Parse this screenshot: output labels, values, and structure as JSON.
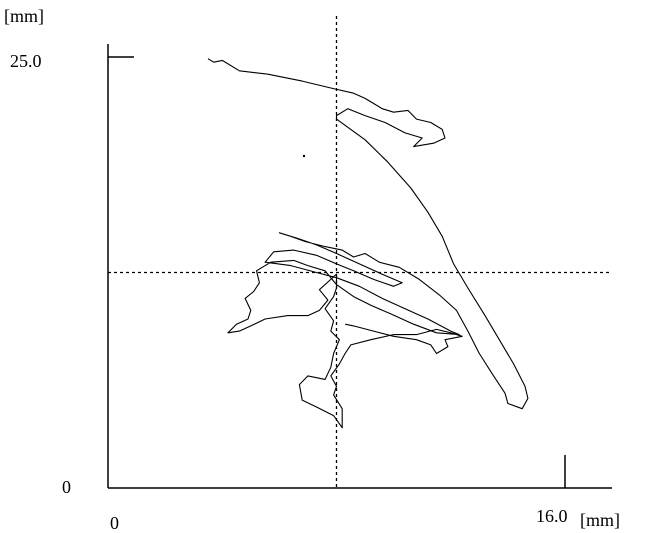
{
  "chart_data": {
    "type": "line",
    "x_unit_label": "[mm]",
    "y_unit_label": "[mm]",
    "x_tick_labels": [
      "0",
      "16.0"
    ],
    "y_tick_labels": [
      "0",
      "25.0"
    ],
    "xlim": [
      0,
      16.0
    ],
    "ylim": [
      0,
      25.0
    ],
    "grid": false,
    "crosshair": {
      "x": 8.0,
      "y": 12.5
    },
    "series": [
      {
        "stroke": "#000000",
        "points": [
          [
            3.5,
            24.9
          ],
          [
            3.7,
            24.7
          ],
          [
            4.0,
            24.8
          ],
          [
            4.6,
            24.2
          ],
          [
            5.6,
            24.0
          ],
          [
            6.8,
            23.6
          ],
          [
            7.8,
            23.2
          ],
          [
            8.6,
            22.9
          ],
          [
            9.0,
            22.6
          ],
          [
            9.6,
            22.0
          ],
          [
            10.0,
            21.8
          ],
          [
            10.5,
            21.9
          ],
          [
            10.8,
            21.4
          ],
          [
            11.3,
            21.2
          ],
          [
            11.7,
            20.8
          ],
          [
            11.8,
            20.3
          ],
          [
            11.4,
            20.0
          ],
          [
            10.7,
            19.8
          ],
          [
            11.0,
            20.3
          ],
          [
            10.4,
            20.6
          ],
          [
            9.7,
            21.2
          ],
          [
            9.0,
            21.6
          ],
          [
            8.4,
            22.0
          ],
          [
            8.0,
            21.6
          ],
          [
            8.0,
            21.4
          ],
          [
            9.0,
            20.2
          ],
          [
            9.8,
            18.9
          ],
          [
            10.6,
            17.4
          ],
          [
            11.2,
            16.0
          ],
          [
            11.7,
            14.6
          ],
          [
            12.1,
            13.0
          ],
          [
            12.6,
            11.6
          ],
          [
            13.2,
            10.0
          ],
          [
            13.7,
            8.6
          ],
          [
            14.2,
            7.2
          ],
          [
            14.6,
            5.9
          ],
          [
            14.7,
            5.2
          ],
          [
            14.5,
            4.6
          ],
          [
            14.0,
            4.9
          ],
          [
            13.9,
            5.5
          ],
          [
            13.5,
            6.5
          ],
          [
            13.0,
            7.8
          ],
          [
            12.6,
            9.1
          ],
          [
            12.2,
            10.3
          ],
          [
            11.6,
            11.2
          ],
          [
            10.9,
            12.1
          ],
          [
            10.2,
            12.8
          ],
          [
            9.5,
            13.1
          ],
          [
            9.0,
            13.6
          ],
          [
            8.6,
            13.4
          ],
          [
            8.2,
            13.8
          ],
          [
            7.6,
            14.0
          ],
          [
            6.9,
            14.3
          ],
          [
            6.4,
            14.6
          ],
          [
            6.0,
            14.8
          ],
          [
            6.6,
            14.5
          ],
          [
            7.3,
            14.1
          ],
          [
            8.0,
            13.6
          ],
          [
            8.8,
            13.0
          ],
          [
            9.6,
            12.4
          ],
          [
            10.3,
            11.9
          ],
          [
            10.0,
            11.7
          ],
          [
            9.3,
            12.1
          ],
          [
            8.6,
            12.6
          ],
          [
            8.0,
            13.0
          ],
          [
            7.3,
            13.5
          ],
          [
            6.5,
            13.8
          ],
          [
            5.8,
            13.7
          ],
          [
            5.5,
            13.1
          ],
          [
            6.4,
            12.9
          ],
          [
            7.3,
            12.5
          ],
          [
            8.0,
            12.2
          ],
          [
            8.8,
            11.7
          ],
          [
            9.6,
            11.0
          ],
          [
            10.4,
            10.4
          ],
          [
            11.2,
            9.8
          ],
          [
            12.0,
            9.1
          ],
          [
            12.3,
            8.9
          ],
          [
            11.5,
            9.0
          ],
          [
            10.7,
            9.5
          ],
          [
            9.9,
            10.1
          ],
          [
            9.2,
            10.6
          ],
          [
            8.6,
            11.1
          ],
          [
            8.0,
            11.8
          ],
          [
            7.6,
            12.6
          ],
          [
            7.0,
            12.9
          ],
          [
            6.5,
            13.2
          ],
          [
            5.7,
            13.1
          ],
          [
            5.2,
            12.6
          ],
          [
            5.3,
            11.9
          ],
          [
            5.1,
            11.4
          ],
          [
            4.8,
            11.0
          ],
          [
            5.0,
            10.3
          ],
          [
            4.9,
            9.8
          ],
          [
            4.5,
            9.5
          ],
          [
            4.2,
            9.0
          ],
          [
            4.6,
            9.1
          ],
          [
            5.0,
            9.4
          ],
          [
            5.5,
            9.8
          ],
          [
            6.3,
            10.0
          ],
          [
            7.0,
            10.0
          ],
          [
            7.4,
            10.3
          ],
          [
            7.7,
            10.9
          ],
          [
            7.4,
            11.5
          ],
          [
            7.8,
            12.1
          ],
          [
            8.0,
            12.4
          ],
          [
            8.0,
            11.6
          ],
          [
            7.9,
            11.1
          ],
          [
            7.6,
            10.4
          ],
          [
            7.9,
            9.7
          ],
          [
            7.8,
            9.1
          ],
          [
            8.1,
            8.6
          ],
          [
            7.9,
            7.8
          ],
          [
            7.8,
            7.0
          ],
          [
            7.6,
            6.3
          ],
          [
            7.0,
            6.5
          ],
          [
            6.7,
            6.0
          ],
          [
            6.8,
            5.1
          ],
          [
            7.3,
            4.7
          ],
          [
            7.9,
            4.2
          ],
          [
            8.2,
            3.5
          ],
          [
            8.2,
            4.6
          ],
          [
            7.9,
            5.4
          ],
          [
            8.0,
            5.9
          ],
          [
            7.8,
            6.5
          ],
          [
            8.1,
            7.2
          ],
          [
            8.3,
            7.8
          ],
          [
            8.5,
            8.3
          ],
          [
            9.2,
            8.6
          ],
          [
            10.0,
            8.9
          ],
          [
            10.8,
            8.9
          ],
          [
            11.5,
            9.2
          ],
          [
            12.0,
            9.0
          ],
          [
            12.4,
            8.8
          ],
          [
            11.8,
            8.6
          ],
          [
            11.9,
            8.2
          ],
          [
            11.5,
            7.8
          ],
          [
            11.3,
            8.3
          ],
          [
            10.8,
            8.6
          ],
          [
            10.0,
            8.8
          ],
          [
            9.3,
            9.1
          ],
          [
            8.6,
            9.4
          ],
          [
            8.3,
            9.5
          ]
        ]
      }
    ]
  }
}
